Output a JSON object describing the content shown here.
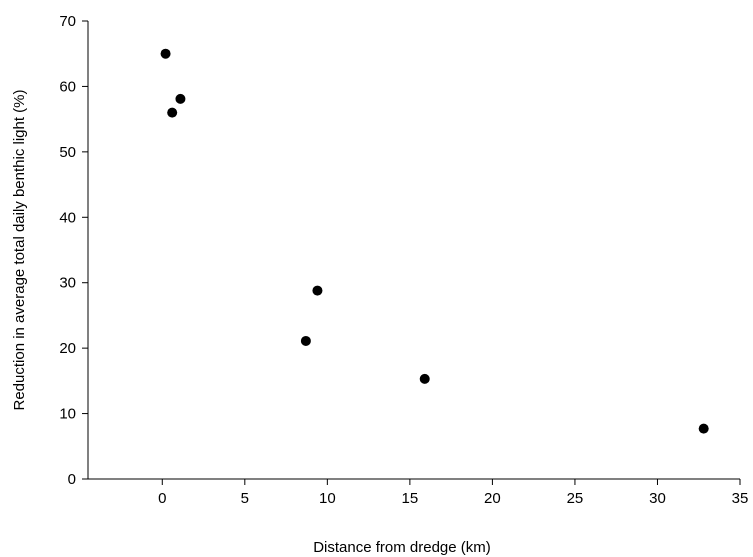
{
  "chart_data": {
    "type": "scatter",
    "x_label": "Distance from dredge (km)",
    "y_label": "Reduction in average total daily benthic light (%)",
    "x": [
      0.2,
      0.6,
      1.1,
      8.7,
      9.4,
      15.9,
      32.8
    ],
    "values": [
      65,
      56,
      58.1,
      21.1,
      28.8,
      15.3,
      7.7
    ],
    "color": "#000000",
    "xlim": [
      -4.5,
      35
    ],
    "xticks": [
      0,
      5,
      10,
      15,
      20,
      25,
      30,
      35
    ],
    "ylim": [
      0,
      70
    ],
    "yticks": [
      0,
      10,
      20,
      30,
      40,
      50,
      60,
      70
    ],
    "grid": false
  }
}
